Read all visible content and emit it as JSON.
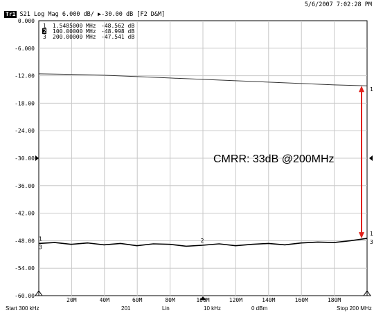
{
  "header": {
    "timestamp": "5/6/2007 7:02:28 PM",
    "trace_id": "Tr1",
    "trace_info": "S21 Log Mag 6.000 dB/ ▶-30.00 dB [F2 D&M]"
  },
  "markers": [
    {
      "num": "1",
      "freq": "1.5485000 MHz",
      "value": "-48.562 dB"
    },
    {
      "num": "2",
      "freq": "100.00000 MHz",
      "value": "-48.998 dB"
    },
    {
      "num": "3",
      "freq": "200.00000 MHz",
      "value": "-47.541 dB"
    }
  ],
  "footer": {
    "start": "Start 300 kHz",
    "points": "201",
    "sweep": "Lin",
    "ifbw": "10 kHz",
    "power": "0 dBm",
    "stop": "Stop 200 MHz"
  },
  "chart_data": {
    "type": "line",
    "y_ticks": [
      "0.000",
      "-6.000",
      "-12.00",
      "-18.00",
      "-24.00",
      "-30.00",
      "-36.00",
      "-42.00",
      "-48.00",
      "-54.00",
      "-60.00"
    ],
    "x_ticks": [
      "20M",
      "40M",
      "60M",
      "80M",
      "100M",
      "120M",
      "140M",
      "160M",
      "180M"
    ],
    "xlim": [
      0.3,
      200
    ],
    "ylim": [
      -60,
      0
    ],
    "reference_level": -30,
    "grid": true,
    "annotation": "CMRR: 33dB @200MHz",
    "arrow": {
      "x": 200,
      "y_from": -14.2,
      "y_to": -47.5
    },
    "series": [
      {
        "x": [
          0.3,
          20,
          40,
          60,
          80,
          100,
          120,
          140,
          160,
          180,
          200
        ],
        "y": [
          -11.6,
          -11.7,
          -11.9,
          -12.2,
          -12.5,
          -12.8,
          -13.1,
          -13.4,
          -13.7,
          -14.0,
          -14.2
        ],
        "color": "#333333"
      },
      {
        "x": [
          0.3,
          10,
          20,
          30,
          40,
          50,
          60,
          70,
          80,
          90,
          100,
          110,
          120,
          130,
          140,
          150,
          160,
          170,
          180,
          190,
          200
        ],
        "y": [
          -48.6,
          -48.4,
          -48.8,
          -48.5,
          -48.9,
          -48.6,
          -49.1,
          -48.7,
          -48.8,
          -49.2,
          -49.0,
          -48.7,
          -49.1,
          -48.8,
          -48.6,
          -48.9,
          -48.5,
          -48.3,
          -48.4,
          -48.0,
          -47.5
        ],
        "color": "#000000"
      }
    ],
    "marker_labels": [
      {
        "label": "1",
        "x": 0.3,
        "y": -48.6
      },
      {
        "label": "3",
        "x": 0.3,
        "y": -48.6
      },
      {
        "label": "2",
        "x": 100,
        "y": -49.0
      },
      {
        "label": "1",
        "x": 200,
        "y": -14.2
      },
      {
        "label": "1",
        "x": 200,
        "y": -47.5
      },
      {
        "label": "3",
        "x": 200,
        "y": -47.5
      }
    ]
  }
}
